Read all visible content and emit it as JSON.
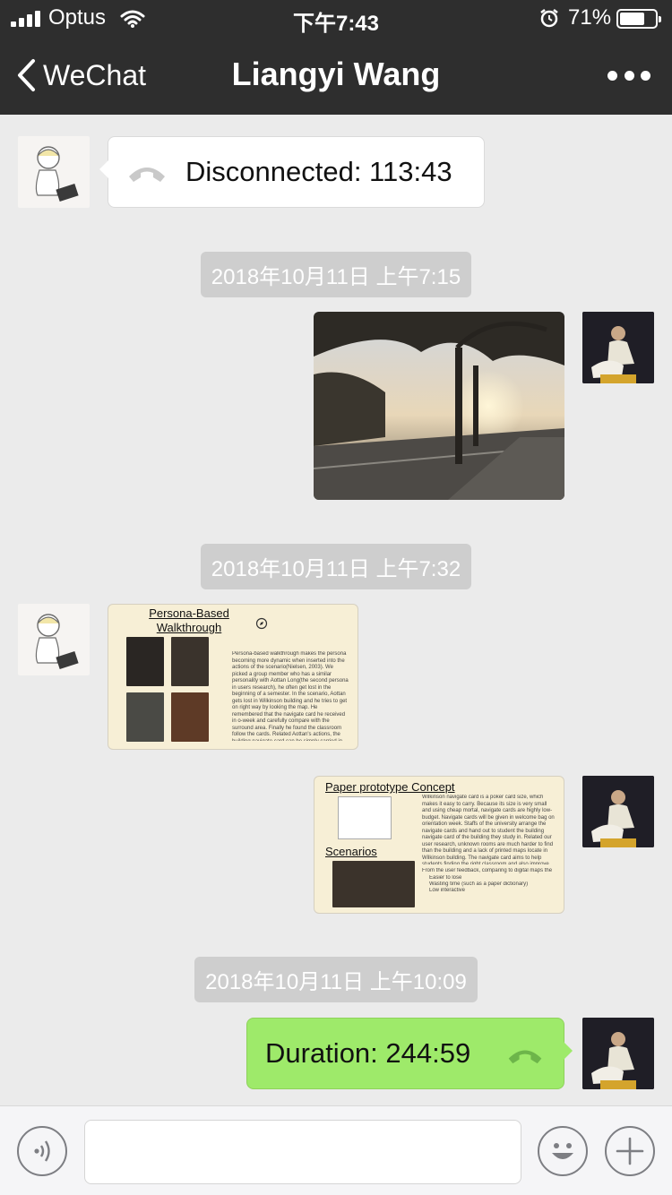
{
  "status_bar": {
    "carrier": "Optus",
    "time": "下午7:43",
    "battery": "71%",
    "battery_level": 0.71
  },
  "nav": {
    "back_label": "WeChat",
    "title": "Liangyi Wang"
  },
  "messages": {
    "call_disconnected": "Disconnected: 113:43",
    "timestamp_1": "2018年10月11日 上午7:15",
    "timestamp_2": "2018年10月11日 上午7:32",
    "slide1": {
      "title": "Persona-Based Walkthrough",
      "body": "Persona-based walkthrough makes the persona becoming more dynamic when inserted into the actions of the scenario(Nielsen, 2003). We picked a group member who has a similar personality with Aottan Long(the second persona in users research), he often get lost in the beginning of a semester. In the scenario, Aottan gets lost in Wilkinson building and he tries to get on right way by looking the map. He remembered that the navigate card he received in o-week and carefully compare with the surround area. Finally he found the classroom follow the cards. Related Aottan's actions, the building navigate card can be simply carried in user's pocket, however, users may take a while to confirm location when they already in Wilkinson building."
    },
    "slide2": {
      "title": "Paper prototype Concept",
      "subtitle": "Scenarios",
      "body": "Wilkinson navigate card is a poker card size, which makes it easy to carry. Because its size is very small and using cheap mortal, navigate cards are highly low-budget. Navigate cards will be given in welcome bag on orientation week. Staffs of the university arrange the navigate cards and hand out to student the building navigate card of the building they study in. Related our user research, unknown rooms are much harder to find than the building and a lack of printed maps locate in Wilkinson building. The navigate card aims to help students finding the right classroom and also improve the students' experience of using printed map.",
      "list_intro": "From the user feedback, comparing to digital maps the navigate card is",
      "list": [
        "Easier to lose",
        "Wasting time (such as a paper dictionary)",
        "Low interactive"
      ]
    },
    "timestamp_3": "2018年10月11日 上午10:09",
    "call_duration": "Duration: 244:59"
  },
  "input_bar": {
    "voice_icon": "voice-icon",
    "emoji_icon": "emoji-icon",
    "plus_icon": "plus-icon"
  },
  "colors": {
    "nav_bg": "#2e2e2e",
    "chat_bg": "#ebebeb",
    "bubble_green": "#9eea6a",
    "timestamp_bg": "#cecece"
  }
}
